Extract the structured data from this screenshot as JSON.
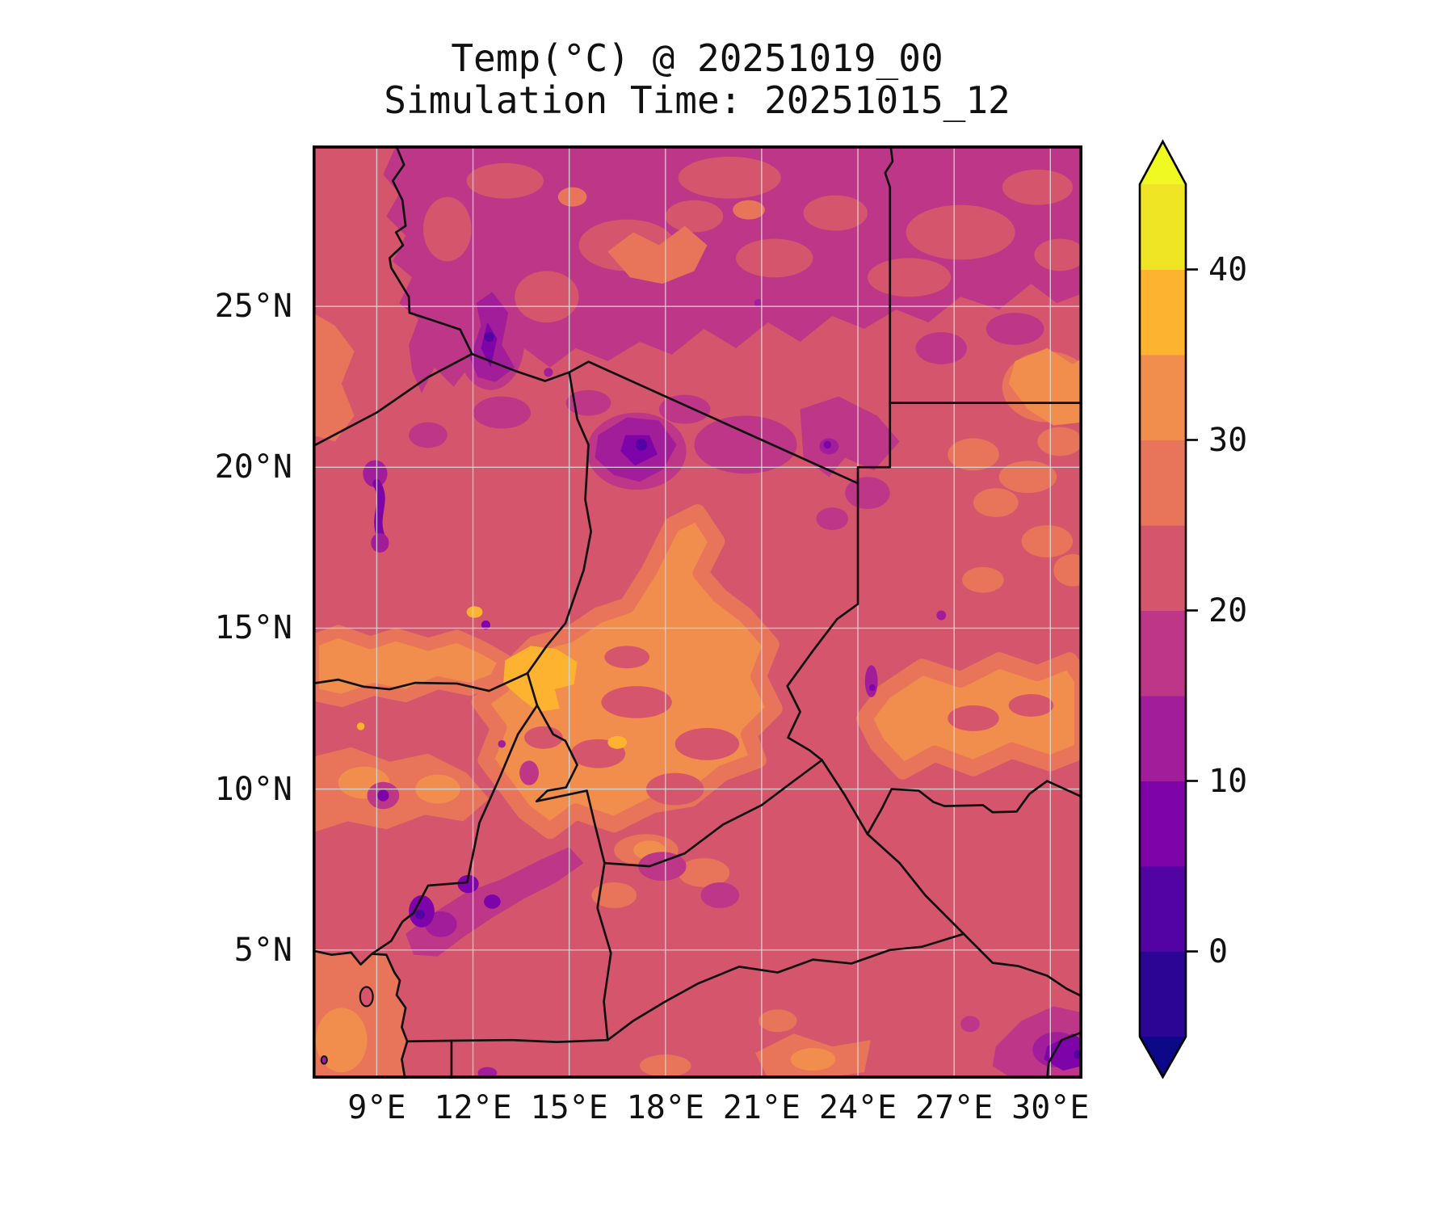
{
  "chart_data": {
    "type": "heatmap",
    "title": "Temp(°C) @ 20251019_00",
    "subtitle": "Simulation Time: 20251015_12",
    "projection": "PlateCarree",
    "extent": {
      "lon_min": 7,
      "lon_max": 31,
      "lat_min": 1,
      "lat_max": 30
    },
    "grid": true,
    "x_axis": {
      "ticks": [
        {
          "lon": 9,
          "label": "9°E"
        },
        {
          "lon": 12,
          "label": "12°E"
        },
        {
          "lon": 15,
          "label": "15°E"
        },
        {
          "lon": 18,
          "label": "18°E"
        },
        {
          "lon": 21,
          "label": "21°E"
        },
        {
          "lon": 24,
          "label": "24°E"
        },
        {
          "lon": 27,
          "label": "27°E"
        },
        {
          "lon": 30,
          "label": "30°E"
        }
      ]
    },
    "y_axis": {
      "ticks": [
        {
          "lat": 5,
          "label": "5°N"
        },
        {
          "lat": 10,
          "label": "10°N"
        },
        {
          "lat": 15,
          "label": "15°N"
        },
        {
          "lat": 20,
          "label": "20°N"
        },
        {
          "lat": 25,
          "label": "25°N"
        }
      ]
    },
    "colorbar": {
      "unit": "°C",
      "position": "right",
      "levels": [
        -5,
        0,
        5,
        10,
        15,
        20,
        25,
        30,
        35,
        40,
        45
      ],
      "band_colors": [
        "#2c0594",
        "#5302a3",
        "#7e03a8",
        "#a21d9a",
        "#bd3687",
        "#d5566c",
        "#e8755a",
        "#f18d4d",
        "#fdb32f",
        "#f0e525"
      ],
      "under_color": "#0d0887",
      "over_color": "#f0f921",
      "ticks": [
        {
          "value": 0,
          "label": "0"
        },
        {
          "value": 10,
          "label": "10"
        },
        {
          "value": 20,
          "label": "20"
        },
        {
          "value": 30,
          "label": "30"
        },
        {
          "value": 40,
          "label": "40"
        }
      ]
    },
    "overlays": [
      "country borders (black)",
      "3° longitude / 5° latitude gridlines (light gray)"
    ],
    "field_summary": [
      {
        "region": "Libya / Egypt desert north of ~21N",
        "temp_band_c": "15-20 with 20-25 patches"
      },
      {
        "region": "Tassili highlands near Algeria-Libya border (~12.5E, 24N)",
        "temp_band_c": "5-15"
      },
      {
        "region": "Tibesti mountains (~17E, 20.5N)",
        "temp_band_c": "0-15 (cold spot)"
      },
      {
        "region": "Air mountains (~9E, 18N)",
        "temp_band_c": "5-15"
      },
      {
        "region": "central Chad basin (13-21E, 9-16N)",
        "temp_band_c": "30-35"
      },
      {
        "region": "Lake Chad area (~14E, 13.5N)",
        "temp_band_c": "35-40 (warm spot)"
      },
      {
        "region": "eastern Sudan lowlands (24-31E, 10.5-14N)",
        "temp_band_c": "30-35"
      },
      {
        "region": "Sahel belt elsewhere",
        "temp_band_c": "20-25"
      },
      {
        "region": "Cameroon highlands (10-12.5E, 5-7N)",
        "temp_band_c": "5-15"
      },
      {
        "region": "Gulf of Guinea ocean (bottom-left)",
        "temp_band_c": "25-30"
      },
      {
        "region": "DR Congo highlands (29-31E, 1-3.5N)",
        "temp_band_c": "5-15"
      }
    ]
  }
}
